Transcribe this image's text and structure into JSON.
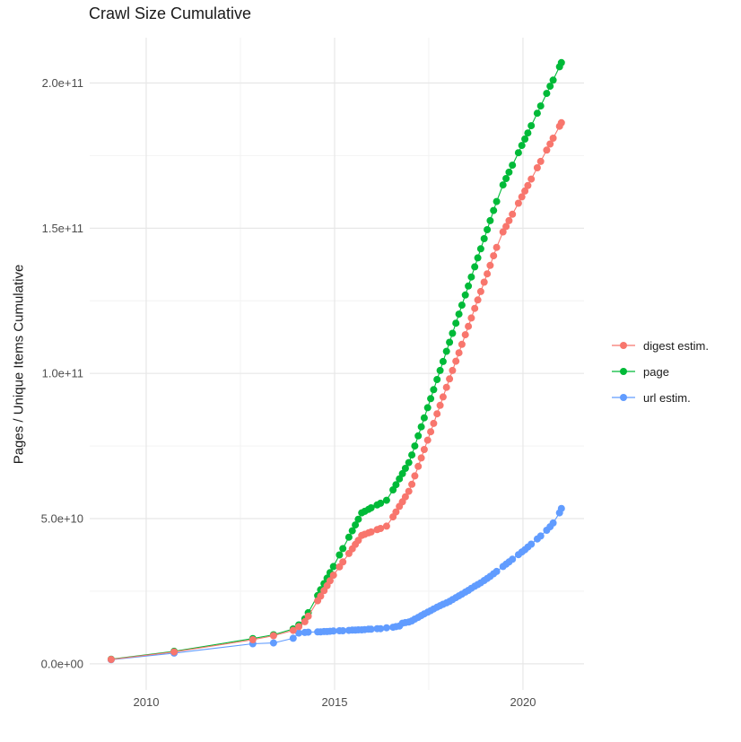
{
  "title": "Crawl Size Cumulative",
  "legend": {
    "items": [
      {
        "id": "digest",
        "label": "digest estim.",
        "color": "#F8766D"
      },
      {
        "id": "page",
        "label": "page",
        "color": "#00BA38"
      },
      {
        "id": "url",
        "label": "url estim.",
        "color": "#619CFF"
      }
    ]
  },
  "chart_data": {
    "type": "line",
    "title": "Crawl Size Cumulative",
    "xlabel": "",
    "ylabel": "Pages / Unique Items Cumulative",
    "legend_position": "right",
    "grid": true,
    "point_radius": 4,
    "xlim": [
      2008.5,
      2021.62
    ],
    "ylim": [
      -9000000000,
      215600000000
    ],
    "x_ticks": [
      {
        "value": 2010,
        "label": "2010"
      },
      {
        "value": 2015,
        "label": "2015"
      },
      {
        "value": 2020,
        "label": "2020"
      }
    ],
    "y_ticks": [
      {
        "value": 0,
        "label": "0.0e+00"
      },
      {
        "value": 50000000000,
        "label": "5.0e+10"
      },
      {
        "value": 100000000000,
        "label": "1.0e+11"
      },
      {
        "value": 150000000000,
        "label": "1.5e+11"
      },
      {
        "value": 200000000000,
        "label": "2.0e+11"
      }
    ],
    "x_minor_breaks": [
      2012.5,
      2017.5
    ],
    "y_minor_breaks": [
      25000000000,
      75000000000,
      125000000000,
      175000000000
    ],
    "value_unit": "pages (values below are in billions, multiply by 1e9)",
    "value_multiplier": 1000000000,
    "x": [
      2009.07,
      2010.74,
      2012.83,
      2013.38,
      2013.9,
      2014.05,
      2014.21,
      2014.3,
      2014.55,
      2014.63,
      2014.72,
      2014.8,
      2014.88,
      2014.97,
      2015.13,
      2015.22,
      2015.38,
      2015.47,
      2015.55,
      2015.63,
      2015.72,
      2015.8,
      2015.9,
      2015.97,
      2016.13,
      2016.22,
      2016.38,
      2016.55,
      2016.63,
      2016.72,
      2016.8,
      2016.88,
      2016.97,
      2017.05,
      2017.13,
      2017.22,
      2017.3,
      2017.38,
      2017.47,
      2017.55,
      2017.63,
      2017.72,
      2017.8,
      2017.88,
      2017.97,
      2018.05,
      2018.13,
      2018.22,
      2018.3,
      2018.38,
      2018.47,
      2018.55,
      2018.63,
      2018.72,
      2018.8,
      2018.88,
      2018.97,
      2019.05,
      2019.13,
      2019.22,
      2019.3,
      2019.47,
      2019.55,
      2019.63,
      2019.72,
      2019.88,
      2019.97,
      2020.05,
      2020.13,
      2020.22,
      2020.38,
      2020.47,
      2020.63,
      2020.72,
      2020.8,
      2020.97,
      2021.02
    ],
    "draw_order": [
      "page",
      "url estim.",
      "digest estim."
    ],
    "series": [
      {
        "name": "digest estim.",
        "color": "#F8766D",
        "values": [
          1.5,
          4.1,
          8.3,
          9.7,
          11.5,
          12.8,
          14.5,
          16.4,
          21.7,
          23.3,
          25.2,
          26.9,
          28.6,
          30.5,
          33.4,
          35.1,
          38,
          39.6,
          41.1,
          42.5,
          44.2,
          44.6,
          45.1,
          45.4,
          46.2,
          46.6,
          47.4,
          50.6,
          52.3,
          54.2,
          55.8,
          57.5,
          59.4,
          61.8,
          64.7,
          68,
          70.9,
          73.8,
          77,
          79.9,
          82.8,
          86.1,
          89,
          91.9,
          95.2,
          98.1,
          101,
          104.2,
          107.1,
          110,
          113.3,
          116.2,
          119.1,
          122.4,
          125.3,
          128.2,
          131.4,
          134.3,
          137.2,
          140.5,
          143.4,
          148.7,
          150.6,
          152.6,
          154.8,
          158.6,
          160.8,
          162.8,
          164.7,
          166.9,
          170.8,
          173,
          176.9,
          179,
          181,
          185.1,
          186.3
        ]
      },
      {
        "name": "page",
        "color": "#00BA38",
        "values": [
          1.6,
          4.3,
          8.7,
          10,
          12,
          13.4,
          15.5,
          17.6,
          23.5,
          25.5,
          27.6,
          29.5,
          31.4,
          33.5,
          37.5,
          39.7,
          43.6,
          45.8,
          47.8,
          49.8,
          52,
          52.5,
          53.2,
          53.7,
          54.7,
          55.3,
          56.3,
          59.9,
          61.7,
          63.7,
          65.5,
          67.3,
          69.3,
          71.9,
          75,
          78.5,
          81.6,
          84.7,
          88.2,
          91.3,
          94.4,
          97.9,
          101,
          104.1,
          107.6,
          110.7,
          113.8,
          117.3,
          120.4,
          123.5,
          127,
          130.1,
          133.2,
          136.7,
          139.8,
          142.9,
          146.4,
          149.5,
          152.6,
          156.1,
          159.2,
          164.9,
          167.1,
          169.3,
          171.7,
          176,
          178.5,
          180.7,
          182.8,
          185.3,
          189.6,
          192.1,
          196.4,
          198.9,
          201,
          205.6,
          207
        ]
      },
      {
        "name": "url estim.",
        "color": "#619CFF",
        "values": [
          1.4,
          3.7,
          6.9,
          7.2,
          8.8,
          10.6,
          10.8,
          10.9,
          11,
          11,
          11.1,
          11.1,
          11.2,
          11.3,
          11.4,
          11.4,
          11.5,
          11.6,
          11.6,
          11.7,
          11.7,
          11.8,
          11.9,
          11.9,
          12.1,
          12.1,
          12.4,
          12.6,
          12.8,
          13,
          14,
          14.2,
          14.4,
          14.8,
          15.4,
          16,
          16.6,
          17.2,
          17.8,
          18.3,
          18.9,
          19.5,
          20,
          20.5,
          21,
          21.5,
          22.1,
          22.8,
          23.4,
          24,
          24.7,
          25.3,
          26,
          26.7,
          27.3,
          27.9,
          28.7,
          29.4,
          30.1,
          31,
          31.8,
          33.5,
          34.3,
          35.1,
          36,
          37.6,
          38.5,
          39.3,
          40.2,
          41.2,
          43,
          44,
          46,
          47.2,
          48.5,
          52,
          53.5
        ]
      }
    ]
  },
  "style": {
    "grid_major_color": "#E7E7E7",
    "grid_minor_color": "#F2F2F2",
    "tick_label_color": "#4d4d4d"
  }
}
